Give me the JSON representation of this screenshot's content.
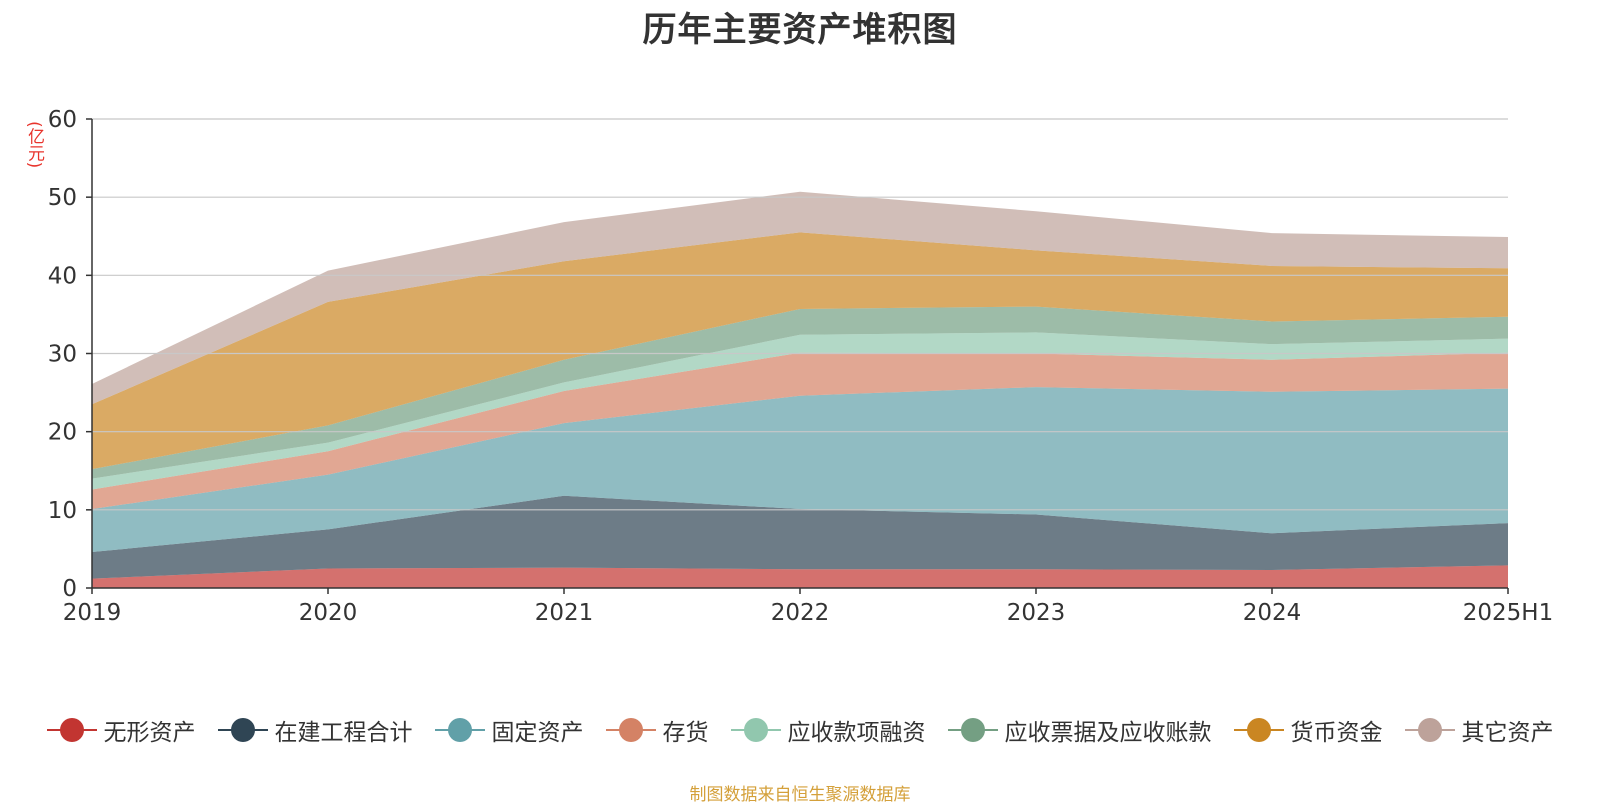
{
  "chart_data": {
    "type": "area",
    "title": "历年主要资产堆积图",
    "unit_label": "(亿元)",
    "x": [
      "2019",
      "2020",
      "2021",
      "2022",
      "2023",
      "2024",
      "2025H1"
    ],
    "ylim": [
      0,
      60
    ],
    "yticks": [
      "0",
      "10",
      "20",
      "30",
      "40",
      "50",
      "60"
    ],
    "stacked": true,
    "grid": true,
    "legend_position": "bottom",
    "series": [
      {
        "name": "无形资产",
        "color": "#c23531",
        "values": [
          1.2,
          2.5,
          2.6,
          2.4,
          2.4,
          2.3,
          2.9
        ]
      },
      {
        "name": "在建工程合计",
        "color": "#2f4554",
        "values": [
          3.4,
          5.0,
          9.2,
          7.7,
          7.0,
          4.7,
          5.4
        ]
      },
      {
        "name": "固定资产",
        "color": "#61a0a8",
        "values": [
          5.5,
          7.0,
          9.3,
          14.5,
          16.3,
          18.1,
          17.2
        ]
      },
      {
        "name": "存货",
        "color": "#d48265",
        "values": [
          2.5,
          3.0,
          4.1,
          5.5,
          4.3,
          4.1,
          4.6
        ]
      },
      {
        "name": "应收款项融资",
        "color": "#91c7ae",
        "values": [
          1.4,
          1.1,
          1.1,
          2.3,
          2.7,
          2.0,
          1.8
        ]
      },
      {
        "name": "应收票据及应收账款",
        "color": "#749f83",
        "values": [
          1.2,
          2.2,
          2.9,
          3.3,
          3.3,
          2.9,
          2.8
        ]
      },
      {
        "name": "货币资金",
        "color": "#ca8622",
        "values": [
          8.3,
          15.8,
          12.6,
          9.8,
          7.2,
          7.1,
          6.2
        ]
      },
      {
        "name": "其它资产",
        "color": "#bda29a",
        "values": [
          2.6,
          4.0,
          5.0,
          5.2,
          5.0,
          4.2,
          4.0
        ]
      }
    ]
  },
  "source_note": "制图数据来自恒生聚源数据库"
}
